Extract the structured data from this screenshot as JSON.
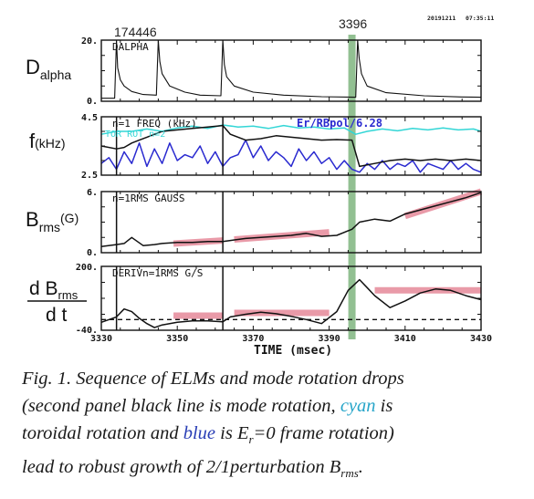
{
  "header": {
    "shot": "174446",
    "date": "20191211",
    "clock": "07:35:11",
    "marker_time": "3396"
  },
  "panels": [
    {
      "id": "dalpha",
      "ylabel_main": "D",
      "ylabel_sub": "alpha",
      "title": "DALPHA",
      "ytick_top": "20.",
      "ytick_bottom": "0."
    },
    {
      "id": "freq",
      "ylabel_main": "f",
      "ylabel_unit": "(kHz)",
      "title": "n=1 FREQ (kHz)",
      "legend_cyan": "TOR ROT n=2",
      "legend_blue": "Er/RBpol/6.28",
      "ytick_top": "4.5",
      "ytick_bottom": "2.5"
    },
    {
      "id": "brms",
      "ylabel_main": "B",
      "ylabel_sub": "rms",
      "ylabel_unit": "(G)",
      "title": "n=1RMS GAUSS",
      "ytick_top": "6.",
      "ytick_bottom": "0."
    },
    {
      "id": "deriv",
      "ylabel_num": "d B",
      "ylabel_num_sub": "rms",
      "ylabel_den": "d t",
      "title": "DERIVn=1RMS G/S",
      "ytick_top": "200.",
      "ytick_bottom": "-40."
    }
  ],
  "xaxis": {
    "label": "TIME (msec)",
    "ticks": [
      "3330",
      "3350",
      "3370",
      "3390",
      "3410",
      "3430"
    ]
  },
  "caption": {
    "line1": "Fig. 1. Sequence of ELMs and mode rotation drops",
    "line2a": "(second panel black line is mode rotation, ",
    "cyan_word": "cyan",
    "line2b": " is",
    "line3a": "toroidal rotation and ",
    "blue_word": "blue",
    "line3b": " is E",
    "er_sub": "r",
    "line3c": "=0 frame rotation)",
    "line4a": "lead to robust growth of 2/1perturbation B",
    "brms_sub": "rms",
    "line4b": "."
  },
  "colors": {
    "marker_band": "#7fb57f",
    "highlight": "#e6899a",
    "cyan": "#33d6d6",
    "blue": "#2a2ad0",
    "black": "#111111"
  },
  "chart_data": {
    "type": "line",
    "x_range": [
      3330,
      3430
    ],
    "x_label": "TIME (msec)",
    "elm_times": [
      3334,
      3345,
      3362,
      3397.5
    ],
    "marker_time": 3396,
    "panels": [
      {
        "name": "DALPHA",
        "ylim": [
          0,
          20
        ],
        "series": [
          {
            "name": "DALPHA",
            "x": [
              3330,
              3333.5,
              3334,
              3334.3,
              3335,
              3336,
              3338,
              3341,
              3344.5,
              3345,
              3345.4,
              3346,
              3348,
              3352,
              3356,
              3361.5,
              3362,
              3362.4,
              3363,
              3365,
              3370,
              3378,
              3388,
              3397,
              3397.5,
              3397.9,
              3398.5,
              3400,
              3405,
              3415,
              3425,
              3430
            ],
            "y": [
              1.0,
              1.0,
              20.0,
              11.0,
              7.0,
              5.0,
              3.2,
              2.2,
              2.0,
              20.0,
              13.0,
              9.0,
              5.0,
              3.0,
              2.0,
              1.8,
              20.0,
              12.0,
              8.0,
              5.0,
              3.0,
              2.0,
              1.5,
              1.3,
              20.0,
              14.0,
              9.0,
              5.0,
              2.8,
              1.8,
              1.4,
              1.3
            ]
          }
        ]
      },
      {
        "name": "n=1 FREQ (kHz)",
        "ylim": [
          2.5,
          4.5
        ],
        "series": [
          {
            "name": "TOR ROT n=2",
            "x": [
              3330,
              3334,
              3338,
              3342,
              3346,
              3350,
              3354,
              3358,
              3362,
              3366,
              3370,
              3374,
              3378,
              3382,
              3386,
              3390,
              3394,
              3397,
              3400,
              3404,
              3408,
              3412,
              3416,
              3420,
              3424,
              3428,
              3430
            ],
            "y": [
              3.9,
              4.0,
              4.0,
              4.08,
              4.0,
              4.12,
              4.18,
              4.1,
              4.22,
              4.15,
              4.18,
              4.1,
              4.2,
              4.12,
              4.15,
              4.08,
              4.12,
              3.9,
              4.0,
              4.08,
              4.02,
              4.1,
              4.05,
              4.12,
              4.05,
              4.08,
              4.0
            ]
          },
          {
            "name": "Er/RBpol/6.28",
            "x": [
              3330,
              3332,
              3334,
              3336,
              3338,
              3340,
              3342,
              3344,
              3346,
              3348,
              3350,
              3352,
              3354,
              3356,
              3358,
              3360,
              3362,
              3364,
              3366,
              3368,
              3370,
              3372,
              3374,
              3376,
              3378,
              3380,
              3382,
              3384,
              3386,
              3388,
              3390,
              3392,
              3394,
              3396,
              3398,
              3400,
              3402,
              3404,
              3406,
              3408,
              3410,
              3412,
              3414,
              3416,
              3418,
              3420,
              3422,
              3424,
              3426,
              3428,
              3430
            ],
            "y": [
              2.9,
              3.1,
              2.7,
              3.3,
              2.9,
              3.6,
              2.8,
              3.4,
              2.9,
              3.6,
              3.0,
              3.2,
              3.1,
              3.5,
              2.9,
              3.3,
              2.8,
              3.1,
              3.2,
              3.7,
              3.1,
              3.5,
              3.0,
              3.3,
              3.1,
              2.8,
              3.4,
              3.0,
              3.3,
              2.9,
              3.1,
              2.7,
              3.0,
              2.7,
              2.6,
              2.9,
              2.7,
              3.0,
              2.7,
              2.9,
              2.8,
              3.0,
              2.6,
              2.9,
              2.8,
              2.7,
              3.0,
              2.7,
              2.9,
              2.7,
              2.6
            ]
          },
          {
            "name": "n=1 FREQ",
            "x": [
              3330,
              3334,
              3336,
              3338,
              3340,
              3342,
              3344,
              3346,
              3350,
              3354,
              3358,
              3362,
              3364,
              3368,
              3372,
              3376,
              3380,
              3384,
              3388,
              3392,
              3396,
              3398,
              3402,
              3406,
              3410,
              3414,
              3418,
              3422,
              3426,
              3430
            ],
            "y": [
              3.5,
              3.4,
              3.45,
              3.6,
              3.7,
              3.8,
              3.9,
              4.0,
              4.05,
              4.1,
              4.15,
              4.2,
              3.9,
              3.7,
              3.75,
              3.85,
              3.8,
              3.75,
              3.7,
              3.72,
              3.7,
              2.8,
              2.9,
              3.0,
              3.05,
              3.0,
              3.05,
              3.0,
              3.05,
              3.0
            ]
          }
        ]
      },
      {
        "name": "n=1RMS GAUSS",
        "ylim": [
          0,
          6
        ],
        "series": [
          {
            "name": "n=1RMS GAUSS",
            "x": [
              3330,
              3334,
              3336,
              3338,
              3341,
              3344,
              3346,
              3350,
              3354,
              3358,
              3362,
              3364,
              3368,
              3372,
              3376,
              3380,
              3384,
              3388,
              3392,
              3396,
              3398,
              3402,
              3406,
              3410,
              3414,
              3418,
              3422,
              3426,
              3430
            ],
            "y": [
              0.6,
              0.8,
              0.9,
              1.5,
              0.7,
              0.8,
              0.9,
              1.0,
              1.0,
              1.1,
              1.1,
              1.2,
              1.4,
              1.5,
              1.6,
              1.7,
              1.9,
              1.6,
              1.7,
              2.3,
              3.0,
              3.3,
              3.1,
              3.8,
              4.2,
              4.6,
              5.0,
              5.4,
              5.9
            ]
          }
        ]
      },
      {
        "name": "DERIVn=1RMS G/S",
        "ylim": [
          -40,
          200
        ],
        "series": [
          {
            "name": "DERIVn=1RMS G/S",
            "x": [
              3330,
              3334,
              3336,
              3338,
              3340,
              3342,
              3344,
              3346,
              3350,
              3354,
              3358,
              3362,
              3364,
              3368,
              3372,
              3376,
              3380,
              3384,
              3388,
              3392,
              3395,
              3398,
              3400,
              3402,
              3406,
              3410,
              3414,
              3418,
              3422,
              3426,
              3430
            ],
            "y": [
              -10,
              10,
              40,
              30,
              5,
              -15,
              -30,
              -20,
              -10,
              -5,
              -5,
              -8,
              10,
              20,
              28,
              22,
              12,
              0,
              -15,
              30,
              110,
              150,
              120,
              90,
              45,
              70,
              100,
              115,
              110,
              90,
              75
            ]
          }
        ]
      }
    ],
    "highlights": [
      {
        "panel": 2,
        "x": [
          3349,
          3362
        ],
        "y": [
          0.9,
          1.2
        ]
      },
      {
        "panel": 2,
        "x": [
          3365,
          3390
        ],
        "y": [
          1.3,
          2.0
        ]
      },
      {
        "panel": 2,
        "x": [
          3410,
          3430
        ],
        "y": [
          3.6,
          6.0
        ]
      },
      {
        "panel": 3,
        "x": [
          3349,
          3362
        ],
        "y": [
          15,
          15
        ]
      },
      {
        "panel": 3,
        "x": [
          3365,
          3390
        ],
        "y": [
          25,
          25
        ]
      },
      {
        "panel": 3,
        "x": [
          3402,
          3430
        ],
        "y": [
          110,
          110
        ]
      }
    ]
  }
}
